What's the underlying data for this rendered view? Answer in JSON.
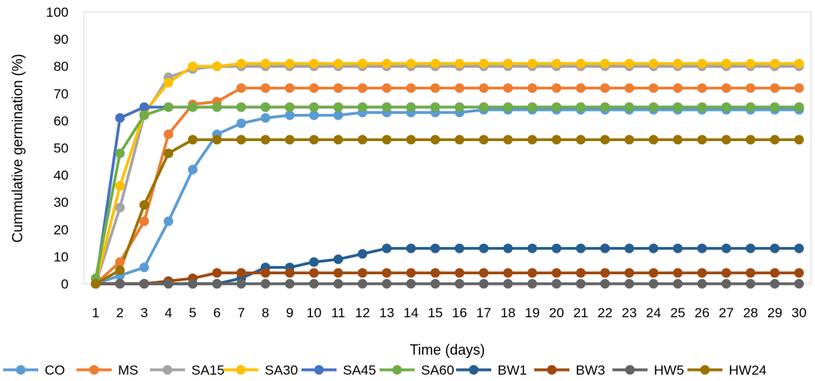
{
  "chart_data": {
    "type": "line",
    "title": "",
    "xlabel": "Time (days)",
    "ylabel": "Cummulative germination (%)",
    "x": [
      1,
      2,
      3,
      4,
      5,
      6,
      7,
      8,
      9,
      10,
      11,
      12,
      13,
      14,
      15,
      16,
      17,
      18,
      19,
      20,
      21,
      22,
      23,
      24,
      25,
      26,
      27,
      28,
      29,
      30
    ],
    "ylim": [
      0,
      100
    ],
    "yticks": [
      0,
      10,
      20,
      30,
      40,
      50,
      60,
      70,
      80,
      90,
      100
    ],
    "grid": false,
    "legend_position": "bottom",
    "series": [
      {
        "name": "CO",
        "color": "#5B9BD5",
        "values": [
          0,
          3,
          6,
          23,
          42,
          55,
          59,
          61,
          62,
          62,
          62,
          63,
          63,
          63,
          63,
          63,
          64,
          64,
          64,
          64,
          64,
          64,
          64,
          64,
          64,
          64,
          64,
          64,
          64,
          64
        ]
      },
      {
        "name": "MS",
        "color": "#ED7D31",
        "values": [
          0,
          8,
          23,
          55,
          66,
          67,
          72,
          72,
          72,
          72,
          72,
          72,
          72,
          72,
          72,
          72,
          72,
          72,
          72,
          72,
          72,
          72,
          72,
          72,
          72,
          72,
          72,
          72,
          72,
          72
        ]
      },
      {
        "name": "SA15",
        "color": "#A5A5A5",
        "values": [
          0,
          28,
          62,
          76,
          79,
          80,
          80,
          80,
          80,
          80,
          80,
          80,
          80,
          80,
          80,
          80,
          80,
          80,
          80,
          80,
          80,
          80,
          80,
          80,
          80,
          80,
          80,
          80,
          80,
          80
        ]
      },
      {
        "name": "SA30",
        "color": "#FFC000",
        "values": [
          0,
          36,
          63,
          74,
          80,
          80,
          81,
          81,
          81,
          81,
          81,
          81,
          81,
          81,
          81,
          81,
          81,
          81,
          81,
          81,
          81,
          81,
          81,
          81,
          81,
          81,
          81,
          81,
          81,
          81
        ]
      },
      {
        "name": "SA45",
        "color": "#4472C4",
        "values": [
          0,
          61,
          65,
          65,
          65,
          65,
          65,
          65,
          65,
          65,
          65,
          65,
          65,
          65,
          65,
          65,
          65,
          65,
          65,
          65,
          65,
          65,
          65,
          65,
          65,
          65,
          65,
          65,
          65,
          65
        ]
      },
      {
        "name": "SA60",
        "color": "#70AD47",
        "values": [
          2,
          48,
          62,
          65,
          65,
          65,
          65,
          65,
          65,
          65,
          65,
          65,
          65,
          65,
          65,
          65,
          65,
          65,
          65,
          65,
          65,
          65,
          65,
          65,
          65,
          65,
          65,
          65,
          65,
          65
        ]
      },
      {
        "name": "BW1",
        "color": "#255E91",
        "values": [
          0,
          0,
          0,
          0,
          0,
          0,
          2,
          6,
          6,
          8,
          9,
          11,
          13,
          13,
          13,
          13,
          13,
          13,
          13,
          13,
          13,
          13,
          13,
          13,
          13,
          13,
          13,
          13,
          13,
          13
        ]
      },
      {
        "name": "BW3",
        "color": "#9E480E",
        "values": [
          0,
          0,
          0,
          1,
          2,
          4,
          4,
          4,
          4,
          4,
          4,
          4,
          4,
          4,
          4,
          4,
          4,
          4,
          4,
          4,
          4,
          4,
          4,
          4,
          4,
          4,
          4,
          4,
          4,
          4
        ]
      },
      {
        "name": "HW5",
        "color": "#636363",
        "values": [
          0,
          0,
          0,
          0,
          0,
          0,
          0,
          0,
          0,
          0,
          0,
          0,
          0,
          0,
          0,
          0,
          0,
          0,
          0,
          0,
          0,
          0,
          0,
          0,
          0,
          0,
          0,
          0,
          0,
          0
        ]
      },
      {
        "name": "HW24",
        "color": "#997300",
        "values": [
          0,
          5,
          29,
          48,
          53,
          53,
          53,
          53,
          53,
          53,
          53,
          53,
          53,
          53,
          53,
          53,
          53,
          53,
          53,
          53,
          53,
          53,
          53,
          53,
          53,
          53,
          53,
          53,
          53,
          53
        ]
      }
    ]
  }
}
